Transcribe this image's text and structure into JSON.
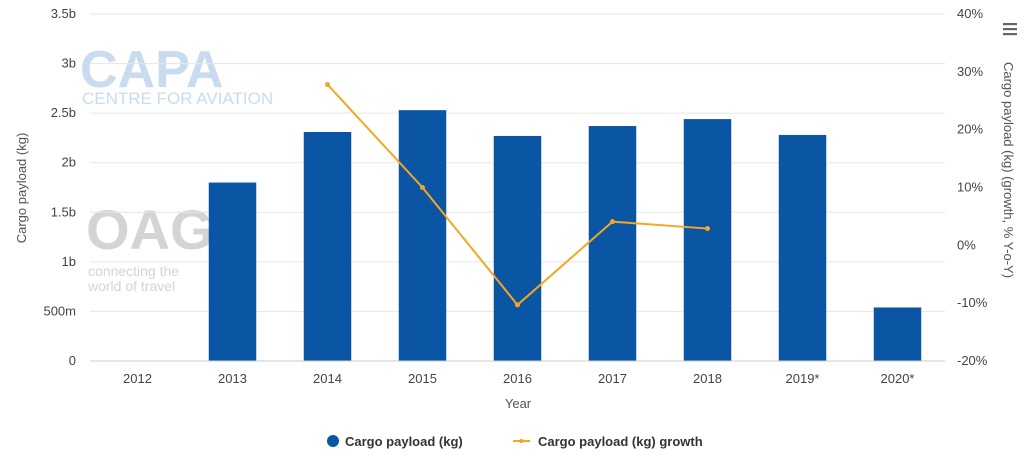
{
  "watermarks": {
    "capa": {
      "logo": "CAPA",
      "tagline": "CENTRE FOR AVIATION"
    },
    "oag": {
      "logo": "OAG",
      "tagline_line1": "connecting the",
      "tagline_line2": "world of travel"
    }
  },
  "menu": {
    "icon": "hamburger-menu-icon"
  },
  "colors": {
    "bar": "#0b56a4",
    "line": "#f5a623",
    "grid": "#e6e6e6"
  },
  "chart_data": {
    "type": "bar",
    "categories": [
      "2012",
      "2013",
      "2014",
      "2015",
      "2016",
      "2017",
      "2018",
      "2019*",
      "2020*"
    ],
    "xlabel": "Year",
    "ylabel": "Cargo payload (kg)",
    "y2label": "Cargo payload (kg) (growth, % Y-o-Y)",
    "ylim": [
      0,
      3500000000
    ],
    "y2lim": [
      -20,
      40
    ],
    "yticks": [
      {
        "value": 0,
        "label": "0"
      },
      {
        "value": 500000000,
        "label": "500m"
      },
      {
        "value": 1000000000,
        "label": "1b"
      },
      {
        "value": 1500000000,
        "label": "1.5b"
      },
      {
        "value": 2000000000,
        "label": "2b"
      },
      {
        "value": 2500000000,
        "label": "2.5b"
      },
      {
        "value": 3000000000,
        "label": "3b"
      },
      {
        "value": 3500000000,
        "label": "3.5b"
      }
    ],
    "y2ticks": [
      {
        "value": -20,
        "label": "-20%"
      },
      {
        "value": -10,
        "label": "-10%"
      },
      {
        "value": 0,
        "label": "0%"
      },
      {
        "value": 10,
        "label": "10%"
      },
      {
        "value": 20,
        "label": "20%"
      },
      {
        "value": 30,
        "label": "30%"
      },
      {
        "value": 40,
        "label": "40%"
      }
    ],
    "grid": true,
    "legend_position": "bottom-center",
    "series": [
      {
        "name": "Cargo payload (kg)",
        "type": "bar",
        "axis": "left",
        "values": [
          null,
          1800000000,
          2310000000,
          2530000000,
          2270000000,
          2370000000,
          2440000000,
          2280000000,
          540000000
        ]
      },
      {
        "name": "Cargo payload (kg) growth",
        "type": "line",
        "axis": "right",
        "values": [
          null,
          null,
          27.8,
          10.0,
          -10.3,
          4.1,
          2.9,
          null,
          null
        ]
      }
    ]
  }
}
